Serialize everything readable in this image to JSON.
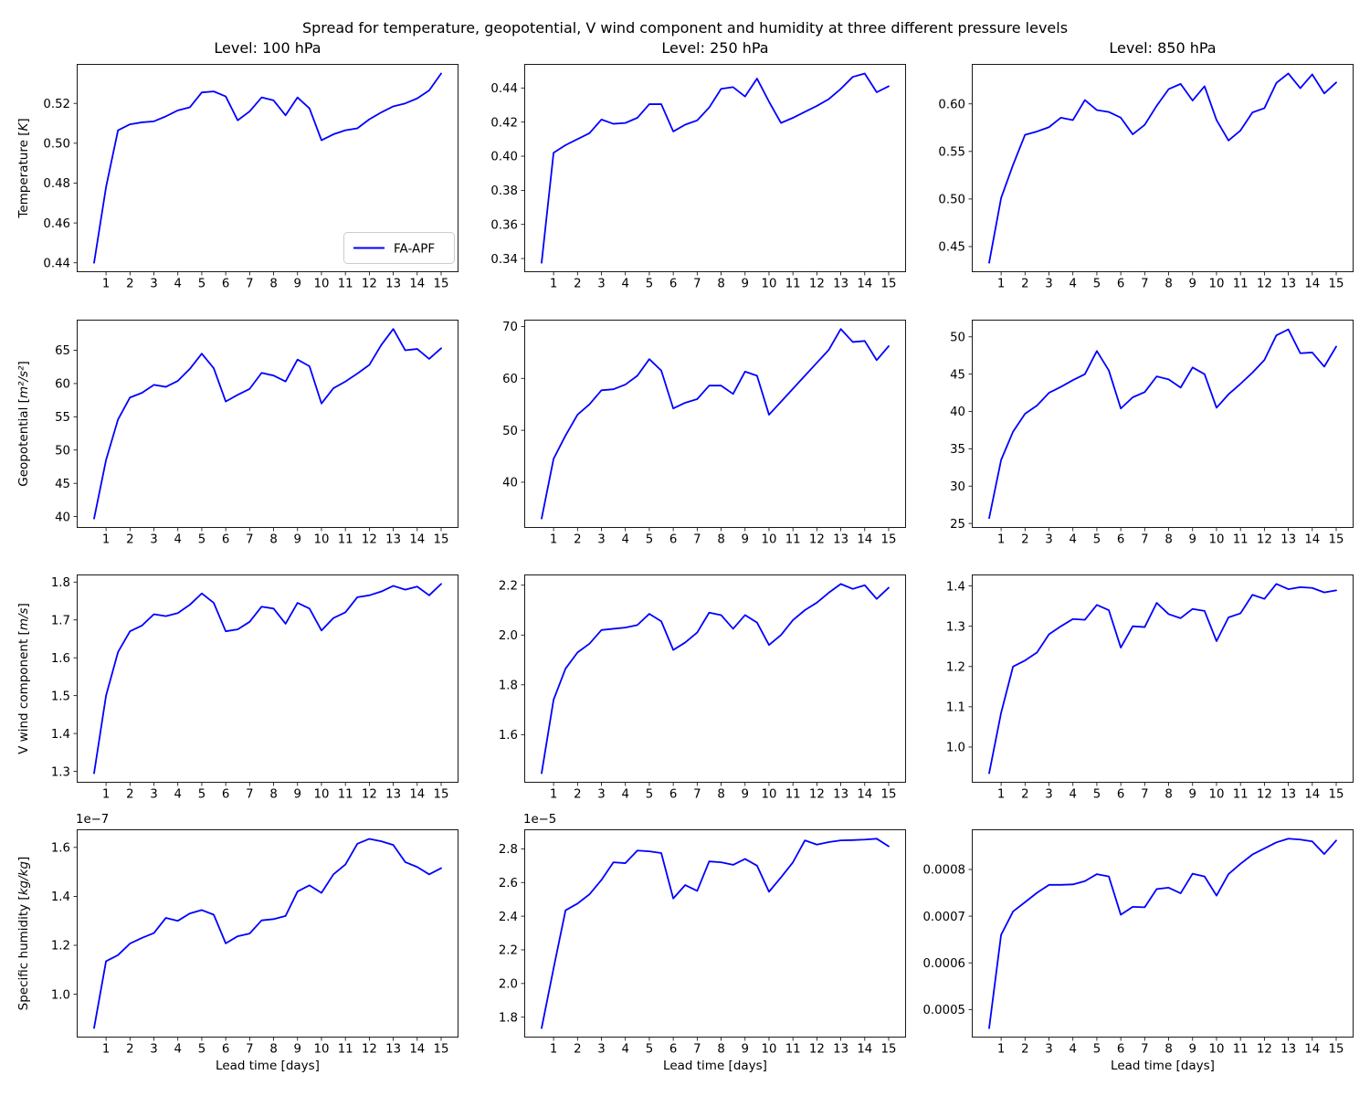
{
  "figure": {
    "suptitle": "Spread for temperature, geopotential, V wind component and humidity at three different pressure levels"
  },
  "chart_data": {
    "type": "line",
    "grid": false,
    "line_color": "#0000ff",
    "background": "#ffffff",
    "legend": {
      "label": "FA-APF",
      "position": "lower right of first subplot"
    },
    "xlabel": "Lead time [days]",
    "xticks": [
      1,
      2,
      3,
      4,
      5,
      6,
      7,
      8,
      9,
      10,
      11,
      12,
      13,
      14,
      15
    ],
    "xlim": [
      -0.225,
      15.725
    ],
    "x": [
      0.5,
      1,
      1.5,
      2,
      2.5,
      3,
      3.5,
      4,
      4.5,
      5,
      5.5,
      6,
      6.5,
      7,
      7.5,
      8,
      8.5,
      9,
      9.5,
      10,
      10.5,
      11,
      11.5,
      12,
      12.5,
      13,
      13.5,
      14,
      14.5,
      15
    ],
    "col_titles": [
      "Level: 100 hPa",
      "Level: 250 hPa",
      "Level: 850 hPa"
    ],
    "row_labels": [
      {
        "prefix": "Temperature [",
        "unit": "K",
        "suffix": "]"
      },
      {
        "prefix": "Geopotential [",
        "unit": "m²/s²",
        "suffix": "]"
      },
      {
        "prefix": "V wind component [",
        "unit": "m/s",
        "suffix": "]"
      },
      {
        "prefix": "Specific humidity [",
        "unit": "kg/kg",
        "suffix": "]"
      }
    ],
    "subplots": [
      {
        "id": "temperature-100hpa",
        "row": 0,
        "col": 0,
        "has_legend": true,
        "ylim": [
          0.4353,
          0.5398
        ],
        "yticks": [
          0.44,
          0.46,
          0.48,
          0.5,
          0.52
        ],
        "ytick_labels": [
          "0.44",
          "0.46",
          "0.48",
          "0.50",
          "0.52"
        ],
        "y": [
          0.44,
          0.478,
          0.5065,
          0.5095,
          0.5105,
          0.511,
          0.5135,
          0.5165,
          0.518,
          0.5255,
          0.526,
          0.5235,
          0.5115,
          0.516,
          0.523,
          0.5215,
          0.514,
          0.523,
          0.5175,
          0.5015,
          0.5045,
          0.5065,
          0.5075,
          0.512,
          0.5155,
          0.5185,
          0.52,
          0.5225,
          0.5265,
          0.535
        ]
      },
      {
        "id": "temperature-250hpa",
        "row": 0,
        "col": 1,
        "ylim": [
          0.332,
          0.4541
        ],
        "yticks": [
          0.34,
          0.36,
          0.38,
          0.4,
          0.42,
          0.44
        ],
        "ytick_labels": [
          "0.34",
          "0.36",
          "0.38",
          "0.40",
          "0.42",
          "0.44"
        ],
        "y": [
          0.3375,
          0.402,
          0.4065,
          0.41,
          0.4135,
          0.4215,
          0.419,
          0.4195,
          0.4225,
          0.4305,
          0.4305,
          0.4145,
          0.4185,
          0.421,
          0.4285,
          0.4395,
          0.4405,
          0.435,
          0.4455,
          0.432,
          0.4195,
          0.4225,
          0.426,
          0.4295,
          0.4335,
          0.4395,
          0.4465,
          0.4485,
          0.4375,
          0.441
        ]
      },
      {
        "id": "temperature-850hpa",
        "row": 0,
        "col": 2,
        "ylim": [
          0.4231,
          0.642
        ],
        "yticks": [
          0.45,
          0.5,
          0.55,
          0.6
        ],
        "ytick_labels": [
          "0.45",
          "0.50",
          "0.55",
          "0.60"
        ],
        "y": [
          0.433,
          0.501,
          0.536,
          0.5675,
          0.571,
          0.5755,
          0.5855,
          0.583,
          0.604,
          0.5935,
          0.5915,
          0.5855,
          0.568,
          0.578,
          0.598,
          0.6155,
          0.621,
          0.6035,
          0.6185,
          0.583,
          0.5615,
          0.572,
          0.591,
          0.5955,
          0.622,
          0.632,
          0.6165,
          0.631,
          0.611,
          0.6225
        ]
      },
      {
        "id": "geopotential-100hpa",
        "row": 1,
        "col": 0,
        "ylim": [
          38.3,
          69.6
        ],
        "yticks": [
          40,
          45,
          50,
          55,
          60,
          65
        ],
        "ytick_labels": [
          "40",
          "45",
          "50",
          "55",
          "60",
          "65"
        ],
        "y": [
          39.7,
          48.5,
          54.6,
          57.9,
          58.6,
          59.8,
          59.5,
          60.4,
          62.2,
          64.5,
          62.3,
          57.3,
          58.3,
          59.2,
          61.6,
          61.2,
          60.3,
          63.6,
          62.6,
          57,
          59.3,
          60.3,
          61.5,
          62.8,
          65.8,
          68.2,
          65,
          65.2,
          63.7,
          65.3
        ]
      },
      {
        "id": "geopotential-250hpa",
        "row": 1,
        "col": 1,
        "ylim": [
          31.2,
          71.3
        ],
        "yticks": [
          40,
          50,
          60,
          70
        ],
        "ytick_labels": [
          "40",
          "50",
          "60",
          "70"
        ],
        "y": [
          33,
          44.5,
          49,
          53,
          55,
          57.7,
          57.9,
          58.8,
          60.5,
          63.7,
          61.5,
          54.2,
          55.3,
          56,
          58.6,
          58.6,
          57,
          61.3,
          60.5,
          53,
          55.5,
          58,
          60.5,
          63,
          65.5,
          69.5,
          67,
          67.2,
          63.5,
          66.2
        ]
      },
      {
        "id": "geopotential-850hpa",
        "row": 1,
        "col": 2,
        "ylim": [
          24.4,
          52.3
        ],
        "yticks": [
          25,
          30,
          35,
          40,
          45,
          50
        ],
        "ytick_labels": [
          "25",
          "30",
          "35",
          "40",
          "45",
          "50"
        ],
        "y": [
          25.7,
          33.5,
          37.3,
          39.7,
          40.8,
          42.5,
          43.3,
          44.2,
          45,
          48.1,
          45.5,
          40.4,
          41.9,
          42.6,
          44.7,
          44.3,
          43.2,
          45.9,
          45,
          40.5,
          42.3,
          43.7,
          45.2,
          46.9,
          50.2,
          51,
          47.8,
          47.9,
          46,
          48.7
        ]
      },
      {
        "id": "v-wind-100hpa",
        "row": 2,
        "col": 0,
        "ylim": [
          1.27,
          1.82
        ],
        "yticks": [
          1.3,
          1.4,
          1.5,
          1.6,
          1.7,
          1.8
        ],
        "ytick_labels": [
          "1.3",
          "1.4",
          "1.5",
          "1.6",
          "1.7",
          "1.8"
        ],
        "y": [
          1.295,
          1.5,
          1.615,
          1.67,
          1.685,
          1.715,
          1.71,
          1.718,
          1.74,
          1.77,
          1.745,
          1.67,
          1.675,
          1.695,
          1.735,
          1.73,
          1.69,
          1.745,
          1.73,
          1.672,
          1.705,
          1.72,
          1.76,
          1.765,
          1.775,
          1.79,
          1.78,
          1.788,
          1.765,
          1.795
        ]
      },
      {
        "id": "v-wind-250hpa",
        "row": 2,
        "col": 1,
        "ylim": [
          1.407,
          2.243
        ],
        "yticks": [
          1.6,
          1.8,
          2.0,
          2.2
        ],
        "ytick_labels": [
          "1.6",
          "1.8",
          "2.0",
          "2.2"
        ],
        "y": [
          1.445,
          1.74,
          1.865,
          1.93,
          1.965,
          2.02,
          2.025,
          2.03,
          2.04,
          2.085,
          2.055,
          1.94,
          1.97,
          2.01,
          2.09,
          2.08,
          2.025,
          2.08,
          2.05,
          1.96,
          2,
          2.06,
          2.1,
          2.13,
          2.17,
          2.205,
          2.185,
          2.2,
          2.145,
          2.19
        ]
      },
      {
        "id": "v-wind-850hpa",
        "row": 2,
        "col": 2,
        "ylim": [
          0.9115,
          1.4285
        ],
        "yticks": [
          1.0,
          1.1,
          1.2,
          1.3,
          1.4
        ],
        "ytick_labels": [
          "1.0",
          "1.1",
          "1.2",
          "1.3",
          "1.4"
        ],
        "y": [
          0.935,
          1.085,
          1.2,
          1.215,
          1.235,
          1.28,
          1.3,
          1.318,
          1.316,
          1.353,
          1.34,
          1.247,
          1.3,
          1.298,
          1.358,
          1.33,
          1.32,
          1.343,
          1.338,
          1.263,
          1.322,
          1.332,
          1.378,
          1.368,
          1.405,
          1.392,
          1.397,
          1.395,
          1.384,
          1.389
        ]
      },
      {
        "id": "specific-humidity-100hpa",
        "row": 3,
        "col": 0,
        "offset_text": "1e−7",
        "ylim": [
          0.823,
          1.674
        ],
        "yticks": [
          1.0,
          1.2,
          1.4,
          1.6
        ],
        "ytick_labels": [
          "1.0",
          "1.2",
          "1.4",
          "1.6"
        ],
        "y": [
          0.862,
          1.135,
          1.16,
          1.207,
          1.23,
          1.25,
          1.312,
          1.3,
          1.33,
          1.344,
          1.325,
          1.208,
          1.237,
          1.248,
          1.302,
          1.307,
          1.32,
          1.42,
          1.445,
          1.414,
          1.49,
          1.53,
          1.615,
          1.635,
          1.625,
          1.61,
          1.54,
          1.52,
          1.49,
          1.515
        ]
      },
      {
        "id": "specific-humidity-250hpa",
        "row": 3,
        "col": 1,
        "offset_text": "1e−5",
        "ylim": [
          1.679,
          2.916
        ],
        "yticks": [
          1.8,
          2.0,
          2.2,
          2.4,
          2.6,
          2.8
        ],
        "ytick_labels": [
          "1.8",
          "2.0",
          "2.2",
          "2.4",
          "2.6",
          "2.8"
        ],
        "y": [
          1.735,
          2.09,
          2.435,
          2.475,
          2.53,
          2.615,
          2.72,
          2.715,
          2.79,
          2.785,
          2.775,
          2.505,
          2.585,
          2.55,
          2.725,
          2.72,
          2.705,
          2.74,
          2.7,
          2.545,
          2.63,
          2.72,
          2.85,
          2.825,
          2.84,
          2.85,
          2.852,
          2.855,
          2.86,
          2.815
        ]
      },
      {
        "id": "specific-humidity-850hpa",
        "row": 3,
        "col": 2,
        "ylim": [
          0.00044,
          0.000886
        ],
        "yticks": [
          0.0005,
          0.0006,
          0.0007,
          0.0008
        ],
        "ytick_labels": [
          "0.0005",
          "0.0006",
          "0.0007",
          "0.0008"
        ],
        "y": [
          0.00046,
          0.00066,
          0.00071,
          0.00073,
          0.00075,
          0.000767,
          0.000767,
          0.000768,
          0.000775,
          0.00079,
          0.000785,
          0.000703,
          0.00072,
          0.000719,
          0.000758,
          0.000761,
          0.000749,
          0.000791,
          0.000785,
          0.000744,
          0.00079,
          0.000812,
          0.000832,
          0.000845,
          0.000858,
          0.000866,
          0.000864,
          0.00086,
          0.000833,
          0.000862
        ]
      }
    ]
  }
}
